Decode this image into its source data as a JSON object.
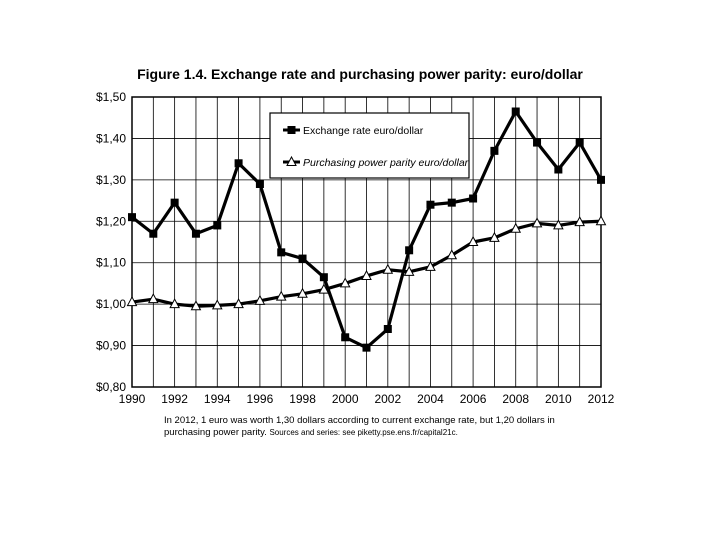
{
  "chart_data": {
    "type": "line",
    "title": "Figure 1.4. Exchange rate and purchasing power parity: euro/dollar",
    "xlabel": "",
    "ylabel": "",
    "x": [
      1990,
      1991,
      1992,
      1993,
      1994,
      1995,
      1996,
      1997,
      1998,
      1999,
      2000,
      2001,
      2002,
      2003,
      2004,
      2005,
      2006,
      2007,
      2008,
      2009,
      2010,
      2011,
      2012
    ],
    "xlim": [
      1990,
      2012
    ],
    "ylim": [
      0.8,
      1.5
    ],
    "x_tick_values": [
      1990,
      1992,
      1994,
      1996,
      1998,
      2000,
      2002,
      2004,
      2006,
      2008,
      2010,
      2012
    ],
    "x_tick_labels": [
      "1990",
      "1992",
      "1994",
      "1996",
      "1998",
      "2000",
      "2002",
      "2004",
      "2006",
      "2008",
      "2010",
      "2012"
    ],
    "y_tick_values": [
      0.8,
      0.9,
      1.0,
      1.1,
      1.2,
      1.3,
      1.4,
      1.5
    ],
    "y_tick_labels": [
      "$0,80",
      "$0,90",
      "$1,00",
      "$1,10",
      "$1,20",
      "$1,30",
      "$1,40",
      "$1,50"
    ],
    "grid": true,
    "legend_position": "top-center",
    "series": [
      {
        "name": "Exchange rate euro/dollar",
        "marker": "square",
        "values": [
          1.21,
          1.17,
          1.245,
          1.17,
          1.19,
          1.34,
          1.29,
          1.125,
          1.11,
          1.065,
          0.92,
          0.895,
          0.94,
          1.13,
          1.24,
          1.245,
          1.255,
          1.37,
          1.465,
          1.39,
          1.325,
          1.39,
          1.3
        ]
      },
      {
        "name": "Purchasing power parity euro/dollar",
        "marker": "triangle",
        "values": [
          1.005,
          1.012,
          1.0,
          0.995,
          0.997,
          1.0,
          1.008,
          1.018,
          1.025,
          1.035,
          1.05,
          1.068,
          1.083,
          1.078,
          1.09,
          1.118,
          1.15,
          1.16,
          1.182,
          1.195,
          1.19,
          1.198,
          1.2
        ]
      }
    ]
  },
  "caption": {
    "main": "In 2012, 1 euro was worth 1,30 dollars according to current exchange rate, but 1,20 dollars in purchasing power parity.",
    "sources": "Sources and series: see piketty.pse.ens.fr/capital21c."
  }
}
